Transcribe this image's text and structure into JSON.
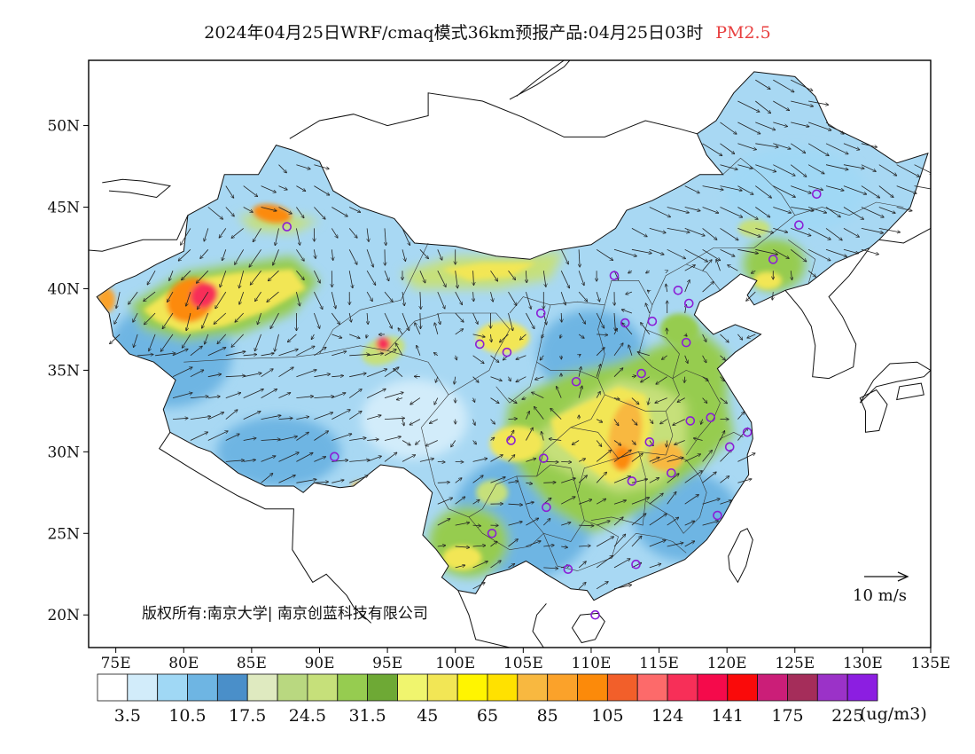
{
  "title": {
    "text": "2024年04月25日WRF/cmaq模式36km预报产品:04月25日03时",
    "pollutant": "PM2.5",
    "pollutant_color": "#e84040"
  },
  "axes": {
    "lat_labels": [
      "50N",
      "45N",
      "40N",
      "35N",
      "30N",
      "25N",
      "20N"
    ],
    "lon_labels": [
      "75E",
      "80E",
      "85E",
      "90E",
      "95E",
      "100E",
      "105E",
      "110E",
      "115E",
      "120E",
      "125E",
      "130E",
      "135E"
    ],
    "lon_range": [
      73,
      135
    ],
    "lat_range": [
      18,
      54
    ]
  },
  "wind_reference": {
    "label": "10 m/s"
  },
  "copyright": {
    "text": "版权所有:南京大学| 南京创蓝科技有限公司"
  },
  "legend": {
    "units": "(ug/m3)",
    "colors": [
      "#ffffff",
      "#d2ecfa",
      "#a0d8f5",
      "#6eb5e3",
      "#4a8fc9",
      "#dfeac0",
      "#b9d880",
      "#c6e07a",
      "#96cc50",
      "#6ea935",
      "#f0f56e",
      "#f2e655",
      "#fff500",
      "#ffe100",
      "#f8b840",
      "#fba22a",
      "#fc8a0a",
      "#f25f2a",
      "#fd6a6a",
      "#f72f58",
      "#f50a4b",
      "#fa0a0a",
      "#cb1e78",
      "#a52d5a",
      "#9b32c8",
      "#8c1ee1"
    ],
    "labels": [
      "3.5",
      "10.5",
      "17.5",
      "24.5",
      "31.5",
      "45",
      "65",
      "85",
      "105",
      "124",
      "141",
      "175",
      "225"
    ]
  },
  "stations": [
    {
      "lon": 87.6,
      "lat": 43.8
    },
    {
      "lon": 91.1,
      "lat": 29.7
    },
    {
      "lon": 101.8,
      "lat": 36.6
    },
    {
      "lon": 103.8,
      "lat": 36.1
    },
    {
      "lon": 106.3,
      "lat": 38.5
    },
    {
      "lon": 111.7,
      "lat": 40.8
    },
    {
      "lon": 112.5,
      "lat": 37.9
    },
    {
      "lon": 114.5,
      "lat": 38.0
    },
    {
      "lon": 116.4,
      "lat": 39.9
    },
    {
      "lon": 117.2,
      "lat": 39.1
    },
    {
      "lon": 117.0,
      "lat": 36.7
    },
    {
      "lon": 113.7,
      "lat": 34.8
    },
    {
      "lon": 108.9,
      "lat": 34.3
    },
    {
      "lon": 104.1,
      "lat": 30.7
    },
    {
      "lon": 106.5,
      "lat": 29.6
    },
    {
      "lon": 114.3,
      "lat": 30.6
    },
    {
      "lon": 117.3,
      "lat": 31.9
    },
    {
      "lon": 118.8,
      "lat": 32.1
    },
    {
      "lon": 120.2,
      "lat": 30.3
    },
    {
      "lon": 121.5,
      "lat": 31.2
    },
    {
      "lon": 115.9,
      "lat": 28.7
    },
    {
      "lon": 113.0,
      "lat": 28.2
    },
    {
      "lon": 119.3,
      "lat": 26.1
    },
    {
      "lon": 106.7,
      "lat": 26.6
    },
    {
      "lon": 102.7,
      "lat": 25.0
    },
    {
      "lon": 108.3,
      "lat": 22.8
    },
    {
      "lon": 113.3,
      "lat": 23.1
    },
    {
      "lon": 110.3,
      "lat": 20.0
    },
    {
      "lon": 123.4,
      "lat": 41.8
    },
    {
      "lon": 125.3,
      "lat": 43.9
    },
    {
      "lon": 126.6,
      "lat": 45.8
    }
  ]
}
